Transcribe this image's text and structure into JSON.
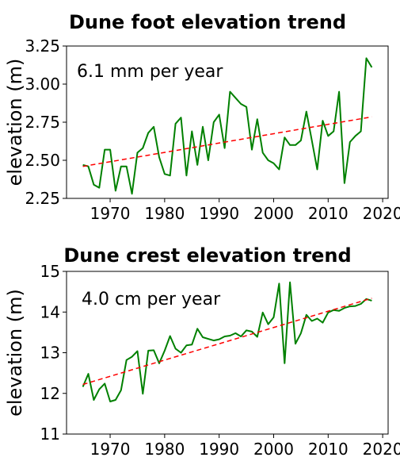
{
  "chart_data": [
    {
      "type": "line",
      "title": "Dune foot elevation trend",
      "ylabel": "elevation (m)",
      "annotation": "6.1 mm per year",
      "xlim": [
        1962,
        2021
      ],
      "ylim": [
        2.25,
        3.25
      ],
      "xticks": [
        1970,
        1980,
        1990,
        2000,
        2010,
        2020
      ],
      "yticks": [
        "2.25",
        "2.50",
        "2.75",
        "3.00",
        "3.25"
      ],
      "grid": false,
      "series": [
        {
          "style": "solid",
          "color": "#008000",
          "x": [
            1965,
            1966,
            1967,
            1968,
            1969,
            1970,
            1971,
            1972,
            1973,
            1974,
            1975,
            1976,
            1977,
            1978,
            1979,
            1980,
            1981,
            1982,
            1983,
            1984,
            1985,
            1986,
            1987,
            1988,
            1989,
            1990,
            1991,
            1992,
            1993,
            1994,
            1995,
            1996,
            1997,
            1998,
            1999,
            2000,
            2001,
            2002,
            2003,
            2004,
            2005,
            2006,
            2007,
            2008,
            2009,
            2010,
            2011,
            2012,
            2013,
            2014,
            2015,
            2016,
            2017,
            2018
          ],
          "y": [
            2.47,
            2.46,
            2.34,
            2.32,
            2.57,
            2.57,
            2.3,
            2.46,
            2.46,
            2.28,
            2.55,
            2.58,
            2.68,
            2.72,
            2.52,
            2.41,
            2.4,
            2.74,
            2.78,
            2.4,
            2.69,
            2.47,
            2.72,
            2.5,
            2.75,
            2.8,
            2.58,
            2.95,
            2.91,
            2.87,
            2.85,
            2.57,
            2.77,
            2.55,
            2.5,
            2.48,
            2.44,
            2.65,
            2.6,
            2.6,
            2.63,
            2.82,
            2.63,
            2.44,
            2.76,
            2.66,
            2.69,
            2.95,
            2.35,
            2.62,
            2.66,
            2.69,
            3.17,
            3.11
          ]
        },
        {
          "style": "dashed",
          "color": "#ff0000",
          "x": [
            1965,
            2018
          ],
          "y": [
            2.46,
            2.785
          ]
        }
      ]
    },
    {
      "type": "line",
      "title": "Dune crest elevation trend",
      "ylabel": "elevation (m)",
      "annotation": "4.0 cm per year",
      "xlim": [
        1962,
        2021
      ],
      "ylim": [
        11,
        15
      ],
      "xticks": [
        1970,
        1980,
        1990,
        2000,
        2010,
        2020
      ],
      "yticks": [
        "11",
        "12",
        "13",
        "14",
        "15"
      ],
      "grid": false,
      "series": [
        {
          "style": "solid",
          "color": "#008000",
          "x": [
            1965,
            1966,
            1967,
            1968,
            1969,
            1970,
            1971,
            1972,
            1973,
            1974,
            1975,
            1976,
            1977,
            1978,
            1979,
            1980,
            1981,
            1982,
            1983,
            1984,
            1985,
            1986,
            1987,
            1988,
            1989,
            1990,
            1991,
            1992,
            1993,
            1994,
            1995,
            1996,
            1997,
            1998,
            1999,
            2000,
            2001,
            2002,
            2003,
            2004,
            2005,
            2006,
            2007,
            2008,
            2009,
            2010,
            2011,
            2012,
            2013,
            2014,
            2015,
            2016,
            2017,
            2018
          ],
          "y": [
            12.16,
            12.48,
            11.84,
            12.1,
            12.24,
            11.8,
            11.84,
            12.08,
            12.82,
            12.9,
            13.04,
            11.99,
            13.05,
            13.06,
            12.74,
            13.05,
            13.41,
            13.1,
            13.0,
            13.18,
            13.2,
            13.59,
            13.38,
            13.34,
            13.3,
            13.33,
            13.4,
            13.42,
            13.48,
            13.4,
            13.55,
            13.52,
            13.39,
            13.99,
            13.7,
            13.87,
            14.7,
            12.74,
            14.73,
            13.22,
            13.48,
            13.93,
            13.78,
            13.84,
            13.74,
            13.99,
            14.05,
            14.03,
            14.1,
            14.14,
            14.15,
            14.2,
            14.32,
            14.28
          ]
        },
        {
          "style": "dashed",
          "color": "#ff0000",
          "x": [
            1965,
            2018
          ],
          "y": [
            12.22,
            14.34
          ]
        }
      ]
    }
  ]
}
